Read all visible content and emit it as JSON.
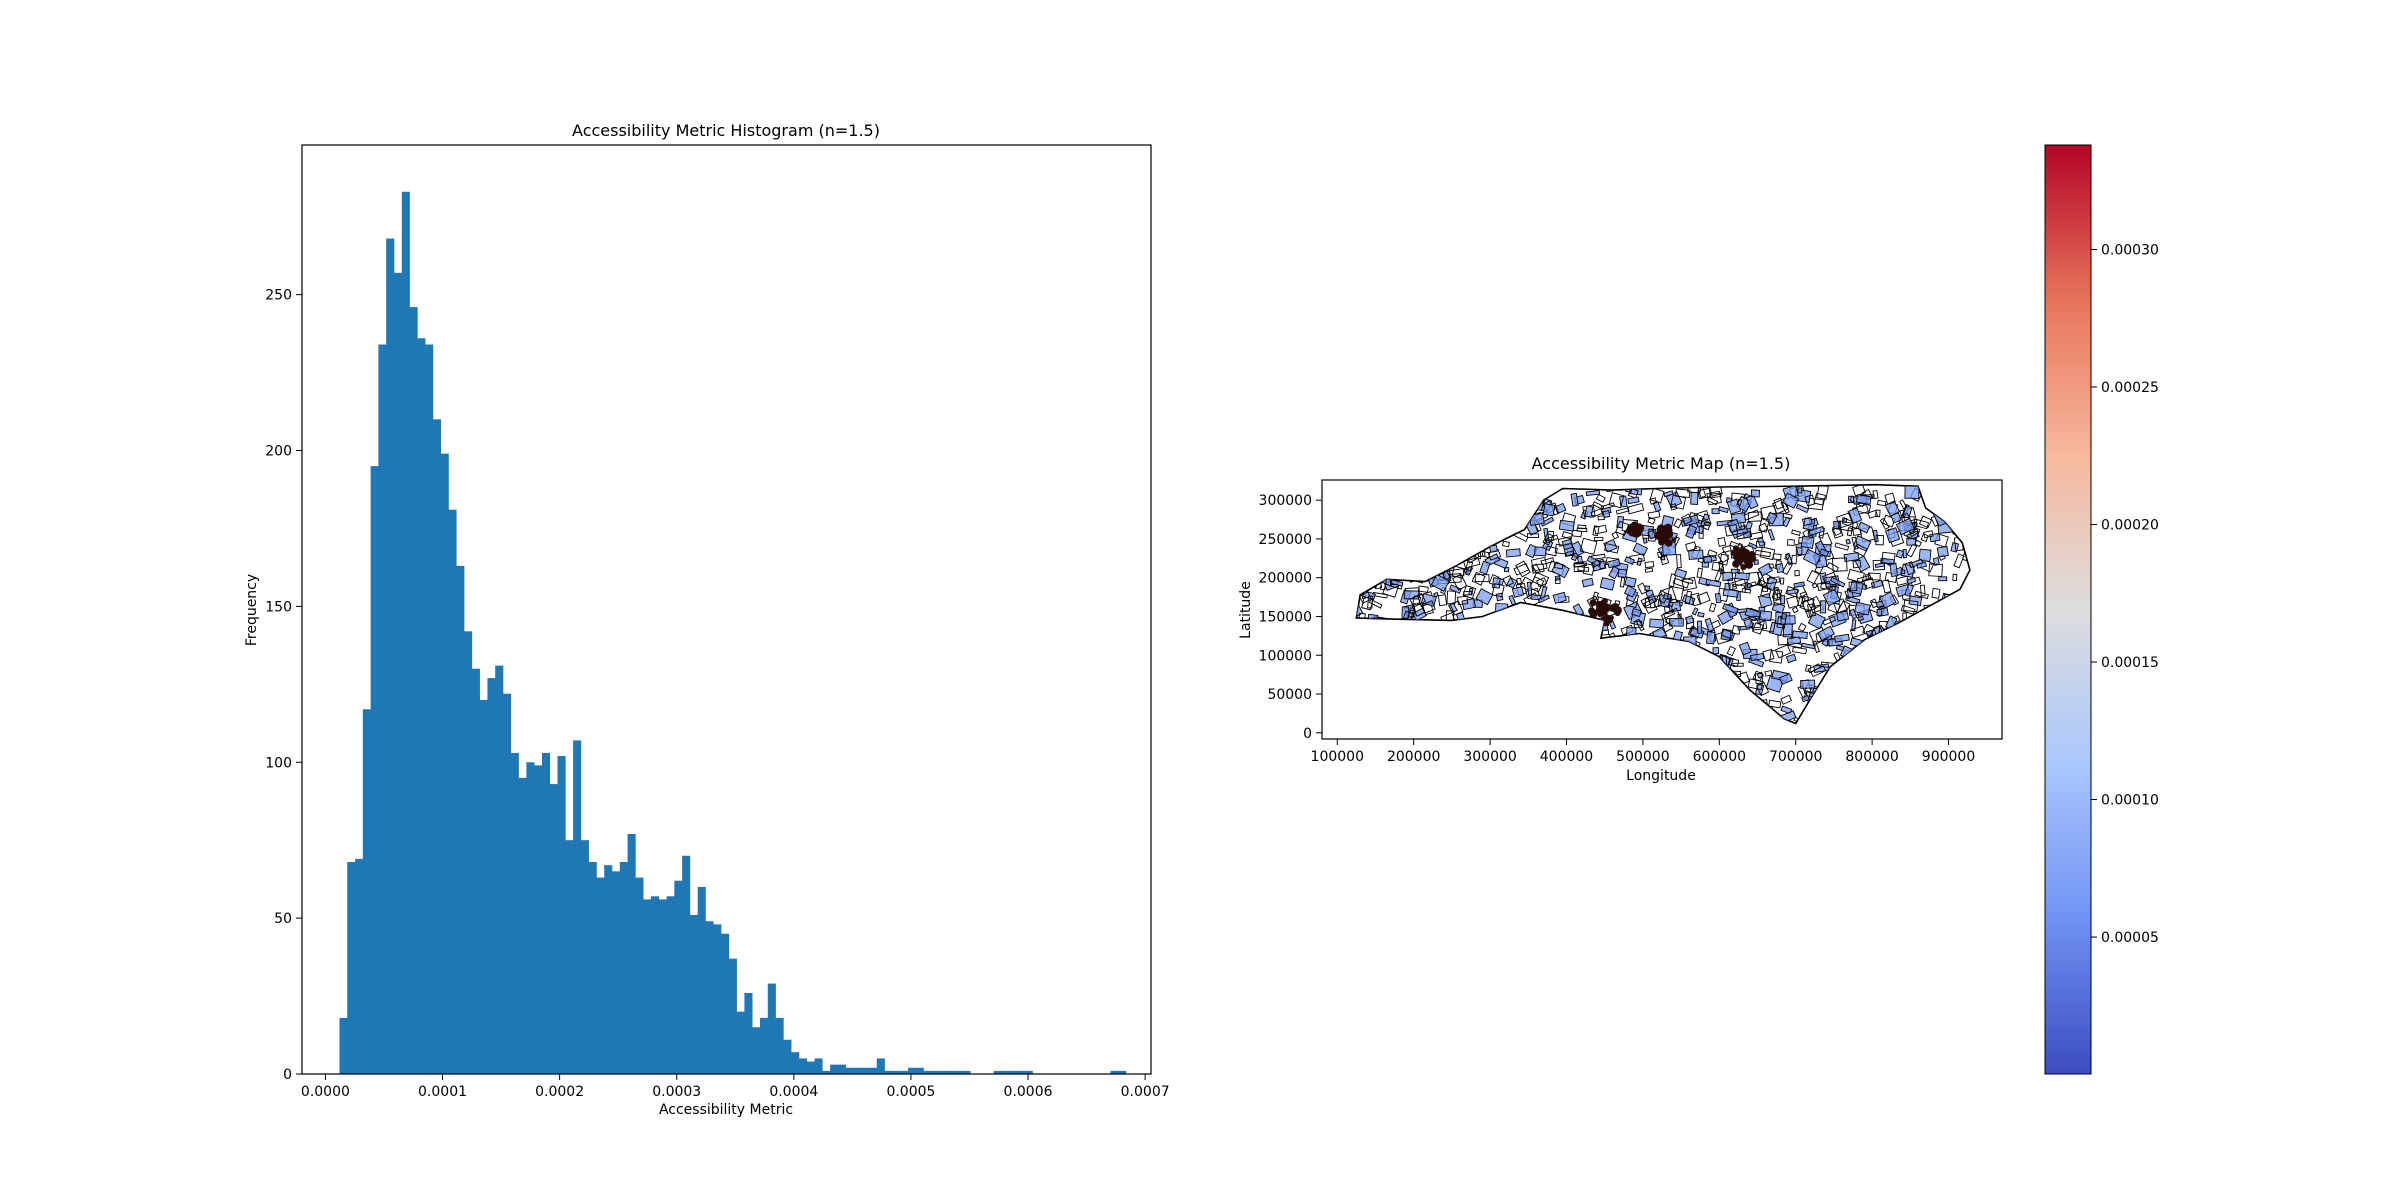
{
  "chart_data": [
    {
      "type": "bar",
      "title": "Accessibility Metric Histogram (n=1.5)",
      "xlabel": "Accessibility Metric",
      "ylabel": "Frequency",
      "xlim": [
        -2e-05,
        0.000705
      ],
      "ylim": [
        0,
        298
      ],
      "xticks": [
        "0.0000",
        "0.0001",
        "0.0002",
        "0.0003",
        "0.0004",
        "0.0005",
        "0.0006",
        "0.0007"
      ],
      "yticks": [
        "0",
        "50",
        "100",
        "150",
        "200",
        "250"
      ],
      "bin_start": 1.2e-05,
      "bin_width": 6.65e-06,
      "color": "#1f77b4",
      "values": [
        18,
        68,
        69,
        117,
        195,
        234,
        268,
        257,
        283,
        246,
        236,
        234,
        210,
        199,
        181,
        163,
        142,
        130,
        120,
        127,
        131,
        122,
        103,
        95,
        100,
        99,
        103,
        93,
        102,
        75,
        107,
        75,
        68,
        63,
        67,
        65,
        68,
        77,
        63,
        56,
        57,
        56,
        57,
        62,
        70,
        51,
        60,
        49,
        48,
        45,
        37,
        20,
        26,
        15,
        18,
        29,
        18,
        11,
        7,
        5,
        4,
        5,
        1,
        3,
        3,
        2,
        2,
        2,
        2,
        5,
        1,
        1,
        1,
        2,
        2,
        1,
        1,
        1,
        1,
        1,
        1,
        0,
        0,
        0,
        1,
        1,
        1,
        1,
        1,
        0,
        0,
        0,
        0,
        0,
        0,
        0,
        0,
        0,
        0,
        1,
        1
      ]
    },
    {
      "type": "map",
      "title": "Accessibility Metric Map (n=1.5)",
      "xlabel": "Longitude",
      "ylabel": "Latitude",
      "xlim": [
        80000,
        970000
      ],
      "ylim": [
        -8000,
        326000
      ],
      "xticks": [
        "100000",
        "200000",
        "300000",
        "400000",
        "500000",
        "600000",
        "700000",
        "800000",
        "900000"
      ],
      "yticks": [
        "0",
        "50000",
        "100000",
        "150000",
        "200000",
        "250000",
        "300000"
      ],
      "colormap": "coolwarm",
      "outline_color": "#000000",
      "fill_color": "#7b9cf0",
      "high_value_color": "#2a0a06"
    },
    {
      "type": "colorbar",
      "vmin": 2e-07,
      "vmax": 0.000338,
      "ticks": [
        "0.00005",
        "0.00010",
        "0.00015",
        "0.00020",
        "0.00025",
        "0.00030"
      ],
      "colors": [
        "#3b4cc0",
        "#7092f3",
        "#aac7fd",
        "#dddddd",
        "#f7b89c",
        "#e7745b",
        "#b40426"
      ]
    }
  ]
}
